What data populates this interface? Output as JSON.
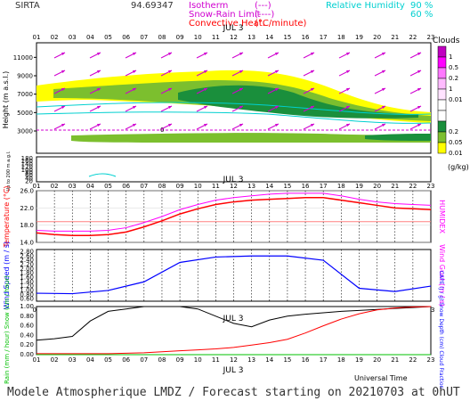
{
  "header": {
    "station": "SIRTA",
    "coords": "94.69347",
    "legend": [
      {
        "label": "Isotherm",
        "value": "(---)",
        "color": "#d000d0"
      },
      {
        "label": "Snow-Rain Limit",
        "value": "(----)",
        "color": "#d000d0"
      },
      {
        "label": "Convective Heat.",
        "value": "(°C/minute)",
        "color": "#ff0000"
      }
    ],
    "rh_label": "Relative Humidity",
    "rh_values": [
      "90 %",
      "60 %"
    ],
    "rh_color": "#00d0d0"
  },
  "colors": {
    "temperature": "#ff0000",
    "humidex": "#ff00ff",
    "wind": "#0000ff",
    "rain": "#00c000",
    "snow": "#0000ff",
    "cloud": "#000000",
    "cape": "#ff0000"
  },
  "footer": {
    "universal_time": "Universal Time",
    "model": "Modele Atmospherique LMDZ / Forecast starting on 20210703 at 0hUT"
  },
  "chart_data": [
    {
      "type": "heatmap",
      "name": "clouds",
      "title": "Clouds",
      "unit": "(g/kg)",
      "date_label": "JUL  3",
      "hours": [
        "01",
        "02",
        "03",
        "04",
        "05",
        "06",
        "07",
        "08",
        "09",
        "10",
        "11",
        "12",
        "13",
        "14",
        "15",
        "16",
        "17",
        "18",
        "19",
        "20",
        "21",
        "22",
        "23"
      ],
      "ylabel": "Height  (m a.s.l.)",
      "ylabel_low": "Up to 200 m a.g.l.",
      "yticks_upper": [
        11000,
        9000,
        7000,
        5000,
        3000
      ],
      "yticks_lower": [
        180,
        160,
        140,
        120,
        100,
        80,
        60,
        40,
        20
      ],
      "colorbar": [
        {
          "label": "1",
          "color": "#c000c0"
        },
        {
          "label": "0.5",
          "color": "#ff00ff"
        },
        {
          "label": "0.2",
          "color": "#ff77ff"
        },
        {
          "label": "1",
          "color": "#ffbbff"
        },
        {
          "label": "0.01",
          "color": "#ffe3ff"
        },
        {
          "label": "",
          "color": "#ffffff"
        },
        {
          "label": "",
          "color": "#ffffff"
        },
        {
          "label": "0.2",
          "color": "#1a8f3c"
        },
        {
          "label": "0.05",
          "color": "#7cbf2e"
        },
        {
          "label": "0.01",
          "color": "#ffff00"
        }
      ],
      "isotherm_value": "0"
    },
    {
      "type": "line",
      "name": "temperature",
      "ylabel": "Temperature (°C)",
      "y2label": "HUMIDEX",
      "ylim": [
        14,
        26
      ],
      "yticks": [
        "26.0",
        "22.0",
        "18.0",
        "14.0"
      ],
      "x": [
        1,
        2,
        3,
        4,
        5,
        6,
        7,
        8,
        9,
        10,
        11,
        12,
        13,
        14,
        15,
        16,
        17,
        18,
        19,
        20,
        21,
        22,
        23
      ],
      "series": [
        {
          "name": "Temperature",
          "values": [
            16.2,
            15.8,
            15.6,
            15.6,
            15.8,
            16.4,
            17.6,
            19.0,
            20.6,
            21.8,
            22.8,
            23.4,
            23.8,
            24.0,
            24.2,
            24.4,
            24.4,
            23.8,
            23.2,
            22.6,
            22.0,
            21.8,
            21.6
          ]
        },
        {
          "name": "HUMIDEX",
          "values": [
            16.8,
            16.6,
            16.6,
            16.6,
            16.8,
            17.4,
            18.6,
            20.0,
            21.6,
            22.8,
            23.8,
            24.4,
            24.8,
            25.2,
            25.4,
            25.4,
            25.4,
            24.8,
            24.0,
            23.4,
            23.0,
            22.8,
            22.6
          ]
        }
      ]
    },
    {
      "type": "line",
      "name": "wind",
      "ylabel": "Wind Speed (m / s)",
      "y2label": "Wind Gust (m / s)",
      "ylim": [
        0.5,
        2.9
      ],
      "yticks": [
        "2.80",
        "2.60",
        "2.40",
        "2.20",
        "2.00",
        "1.80",
        "1.60",
        "1.40",
        "1.20",
        "1.00",
        "0.80",
        "0.60"
      ],
      "x": [
        1,
        3,
        5,
        7,
        9,
        11,
        13,
        15,
        17,
        19,
        21,
        23
      ],
      "series": [
        {
          "name": "Wind Speed",
          "values": [
            0.87,
            0.85,
            1.0,
            1.4,
            2.3,
            2.55,
            2.6,
            2.6,
            2.4,
            1.1,
            0.95,
            1.2
          ]
        }
      ]
    },
    {
      "type": "line",
      "name": "precipitation",
      "date_label": "JUL  3",
      "ylabel": "Rain (mm / hour) Snow (cm / hour)",
      "y2label": "CAPE (J / g) Snow Depth (cm) Cloud Fraction",
      "yticks": [
        "1.00",
        "0.80",
        "0.60",
        "0.40",
        "0.20",
        "0.00"
      ],
      "ylim": [
        0,
        1
      ],
      "x": [
        1,
        2,
        3,
        4,
        5,
        6,
        7,
        8,
        9,
        10,
        11,
        12,
        13,
        14,
        15,
        16,
        17,
        18,
        19,
        20,
        21,
        22,
        23
      ],
      "series": [
        {
          "name": "Cloud Fraction",
          "values": [
            0.3,
            0.33,
            0.38,
            0.7,
            0.9,
            0.95,
            1.0,
            1.0,
            1.0,
            0.95,
            0.8,
            0.65,
            0.58,
            0.72,
            0.8,
            0.84,
            0.87,
            0.9,
            0.92,
            0.94,
            0.96,
            0.98,
            1.0
          ]
        },
        {
          "name": "CAPE",
          "values": [
            0.02,
            0.02,
            0.02,
            0.02,
            0.02,
            0.03,
            0.04,
            0.06,
            0.08,
            0.1,
            0.12,
            0.15,
            0.2,
            0.25,
            0.32,
            0.45,
            0.6,
            0.74,
            0.85,
            0.93,
            0.97,
            0.99,
            1.0
          ]
        },
        {
          "name": "Rain",
          "values": [
            0,
            0,
            0,
            0,
            0,
            0,
            0,
            0,
            0,
            0,
            0,
            0,
            0,
            0,
            0,
            0,
            0,
            0,
            0,
            0,
            0,
            0,
            0
          ]
        }
      ]
    }
  ]
}
